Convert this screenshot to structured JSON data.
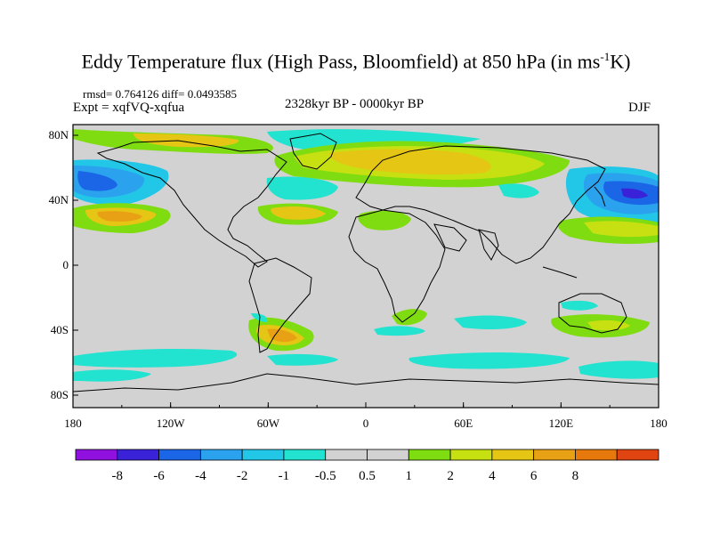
{
  "title": {
    "main": "Eddy Temperature flux (High Pass, Bloomfield) at 850 hPa (in ms",
    "sup": "-1",
    "tail": "K)"
  },
  "stats": "rmsd= 0.764126 diff= 0.0493585",
  "expt": "Expt = xqfVQ-xqfua",
  "period": "2328kyr BP - 0000kyr BP",
  "season": "DJF",
  "axes": {
    "lon_labels": [
      "180",
      "120W",
      "60W",
      "0",
      "60E",
      "120E",
      "180"
    ],
    "lat_labels": [
      "80N",
      "40N",
      "0",
      "40S",
      "80S"
    ]
  },
  "colorbar": {
    "colors": [
      "#9010e0",
      "#3a22d8",
      "#1a66e6",
      "#2aa2ee",
      "#22c6e6",
      "#22e2d0",
      "#d2d2d2",
      "#d2d2d2",
      "#7fdc10",
      "#c6e012",
      "#e6c614",
      "#e8a014",
      "#e6780c",
      "#e04410"
    ],
    "labels": [
      "-8",
      "-6",
      "-4",
      "-2",
      "-1",
      "-0.5",
      "0.5",
      "1",
      "2",
      "4",
      "6",
      "8"
    ]
  },
  "field_colors": {
    "background": "#d2d2d2",
    "neg_strong": "#2a6fe0",
    "neg_mid": "#2aa2ee",
    "neg_weak": "#22e2d0",
    "neg_core": "#3a22d8",
    "pos_weak": "#7fdc10",
    "pos_mid": "#c6e012",
    "pos_strong": "#e6c614",
    "pos_core": "#e8a014"
  }
}
